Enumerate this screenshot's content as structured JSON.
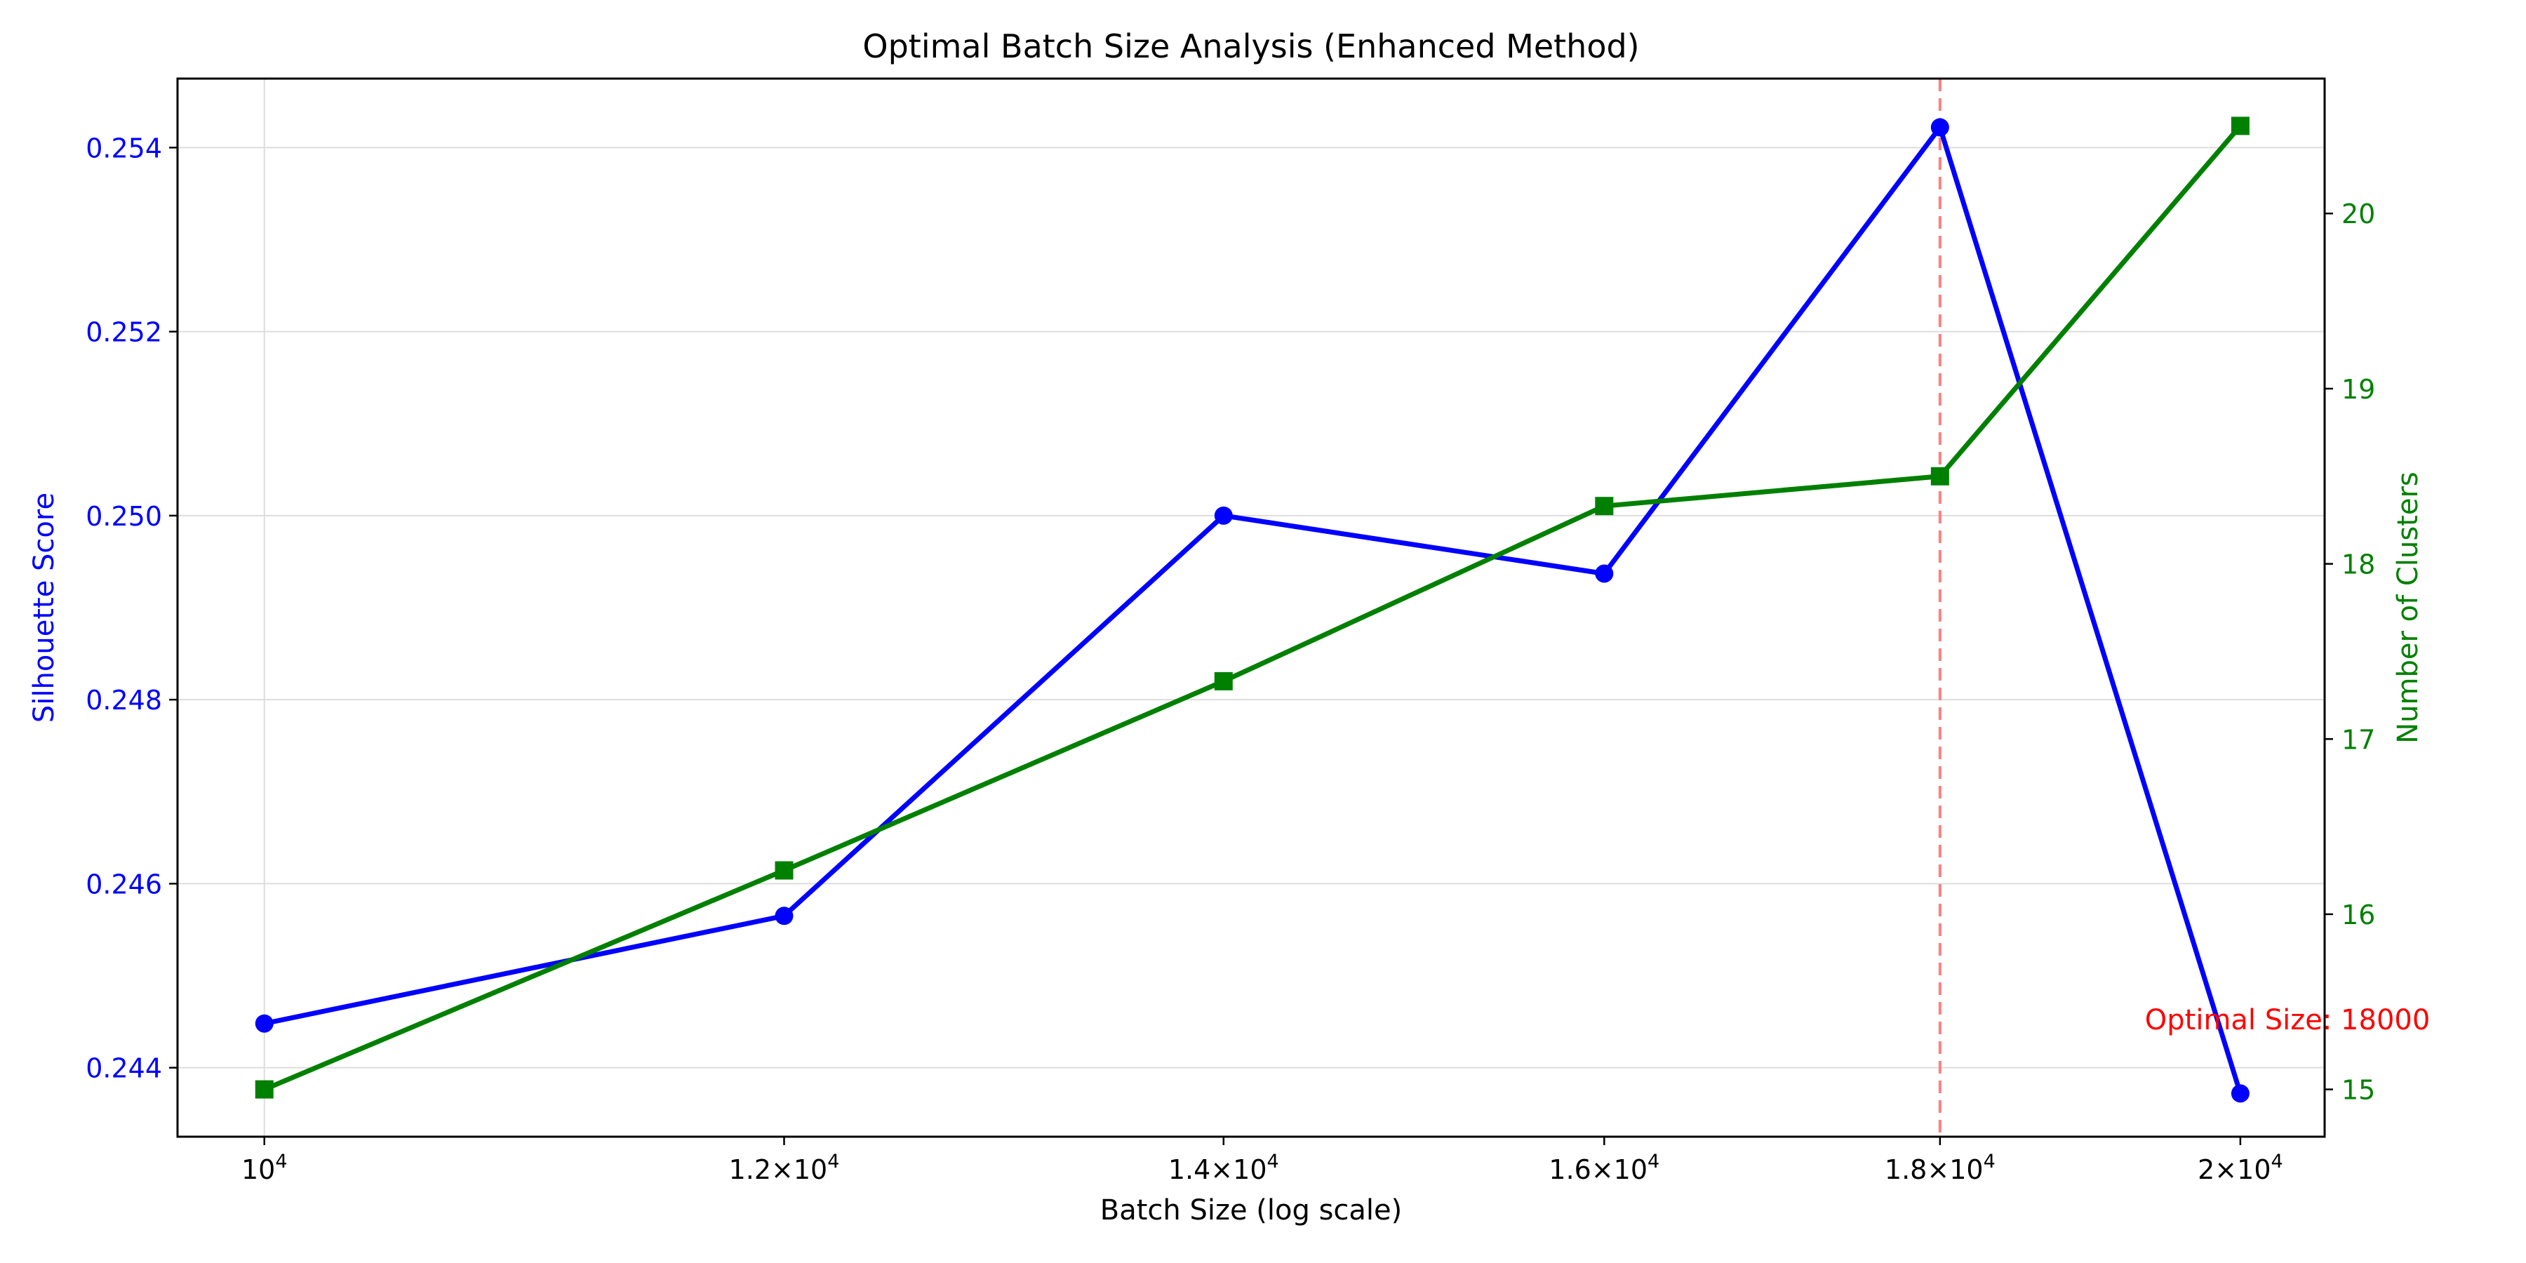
{
  "colors": {
    "silhouette": "#0000ff",
    "clusters": "#008000",
    "optimal_line": "#ff7f7f",
    "annotation": "#ff0000",
    "grid": "#dddddd",
    "axis": "#000000"
  },
  "chart_data": {
    "type": "line",
    "title": "Optimal Batch Size Analysis (Enhanced Method)",
    "xlabel": "Batch Size (log scale)",
    "ylabel_left": "Silhouette Score",
    "ylabel_right": "Number of Clusters",
    "x_scale": "log",
    "xlim": [
      9700,
      20600
    ],
    "ylim_left": [
      0.24325,
      0.25475
    ],
    "ylim_right": [
      14.73,
      20.77
    ],
    "grid": true,
    "x": [
      10000,
      12000,
      14000,
      16000,
      18000,
      20000
    ],
    "x_tick_labels": [
      {
        "value": 10000,
        "base": "10",
        "exp": "4",
        "mult": ""
      },
      {
        "value": 12000,
        "base": "10",
        "exp": "4",
        "mult": "1.2×"
      },
      {
        "value": 14000,
        "base": "10",
        "exp": "4",
        "mult": "1.4×"
      },
      {
        "value": 16000,
        "base": "10",
        "exp": "4",
        "mult": "1.6×"
      },
      {
        "value": 18000,
        "base": "10",
        "exp": "4",
        "mult": "1.8×"
      },
      {
        "value": 20000,
        "base": "10",
        "exp": "4",
        "mult": "2×"
      }
    ],
    "y_left_ticks": [
      0.244,
      0.246,
      0.248,
      0.25,
      0.252,
      0.254
    ],
    "y_left_tick_labels": [
      "0.244",
      "0.246",
      "0.248",
      "0.250",
      "0.252",
      "0.254"
    ],
    "y_right_ticks": [
      15,
      16,
      17,
      18,
      19,
      20
    ],
    "y_right_tick_labels": [
      "15",
      "16",
      "17",
      "18",
      "19",
      "20"
    ],
    "series": [
      {
        "values": [
          0.24448,
          0.24565,
          0.25,
          0.24937,
          0.25422,
          0.24372
        ],
        "axis": "left",
        "marker": "circle"
      },
      {
        "values": [
          15.0,
          16.25,
          17.33,
          18.33,
          18.5,
          20.5
        ],
        "axis": "right",
        "marker": "square"
      }
    ],
    "optimal": {
      "x": 18000,
      "label": "Optimal Size: 18000"
    }
  }
}
